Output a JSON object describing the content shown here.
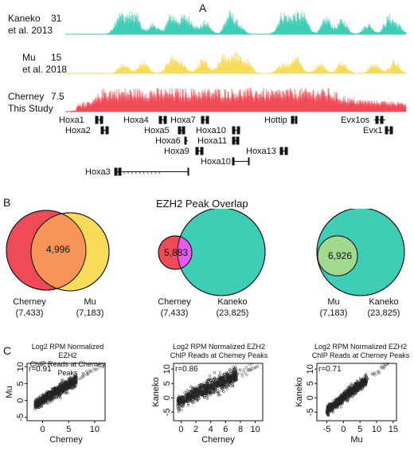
{
  "panels": {
    "a": "A",
    "b": "B",
    "c": "C"
  },
  "colors": {
    "teal": "#3fcdb5",
    "yellow": "#f7dc5c",
    "red": "#ef4b57",
    "orange": "#f79457",
    "magenta": "#e65bf0",
    "green": "#a1d98f"
  },
  "tracks": [
    {
      "label_line1": "Kaneko",
      "label_line2": "et al. 2013",
      "max": "31",
      "color": "#3fcdb5"
    },
    {
      "label_line1": "Mu",
      "label_line2": "et al. 2018",
      "max": "15",
      "color": "#f7dc5c"
    },
    {
      "label_line1": "Cherney",
      "label_line2": "This Study",
      "max": "7.5",
      "color": "#ef4b57"
    }
  ],
  "genes": [
    "Hoxa1",
    "Hoxa2",
    "Hoxa4",
    "Hoxa5",
    "Hoxa6",
    "Hoxa7",
    "Hoxa9",
    "Hoxa10",
    "Hoxa11",
    "Hoxa13",
    "Hoxa10",
    "Hottip",
    "Evx1os",
    "Evx1",
    "Hoxa3"
  ],
  "venn_title": "EZH2 Peak Overlap",
  "venns": [
    {
      "left_name": "Cherney",
      "left_count": "(7,433)",
      "right_name": "Mu",
      "right_count": "(7,183)",
      "overlap": "4,996"
    },
    {
      "left_name": "Cherney",
      "left_count": "(7,433)",
      "right_name": "Kaneko",
      "right_count": "(23,825)",
      "overlap": "5,883"
    },
    {
      "left_name": "Mu",
      "left_count": "(7,183)",
      "right_name": "Kaneko",
      "right_count": "(23,825)",
      "overlap": "6,926"
    }
  ],
  "scatter_title_line1": "Log2 RPM Normalized EZH2",
  "scatter_title_line2": "ChIP Reads at Cherney Peaks",
  "chart_data": [
    {
      "type": "scatter",
      "xlabel": "Cherney",
      "ylabel": "Mu",
      "annotation": "r=0.91",
      "x_ticks": [
        "0",
        "5",
        "10"
      ],
      "y_ticks": [
        "-5",
        "0",
        "5",
        "10"
      ],
      "xlim": [
        -3,
        12
      ],
      "ylim": [
        -6,
        11
      ]
    },
    {
      "type": "scatter",
      "xlabel": "Cherney",
      "ylabel": "Kaneko",
      "annotation": "r=0.86",
      "x_ticks": [
        "0",
        "2",
        "4",
        "6",
        "8",
        "10"
      ],
      "y_ticks": [
        "-5",
        "0",
        "5",
        "10"
      ],
      "xlim": [
        -1,
        11
      ],
      "ylim": [
        -8,
        12
      ]
    },
    {
      "type": "scatter",
      "xlabel": "Mu",
      "ylabel": "Kaneko",
      "annotation": "r=0.71",
      "x_ticks": [
        "-5",
        "0",
        "5",
        "10",
        "15"
      ],
      "y_ticks": [
        "-5",
        "0",
        "5",
        "10"
      ],
      "xlim": [
        -8,
        16
      ],
      "ylim": [
        -8,
        12
      ]
    }
  ]
}
